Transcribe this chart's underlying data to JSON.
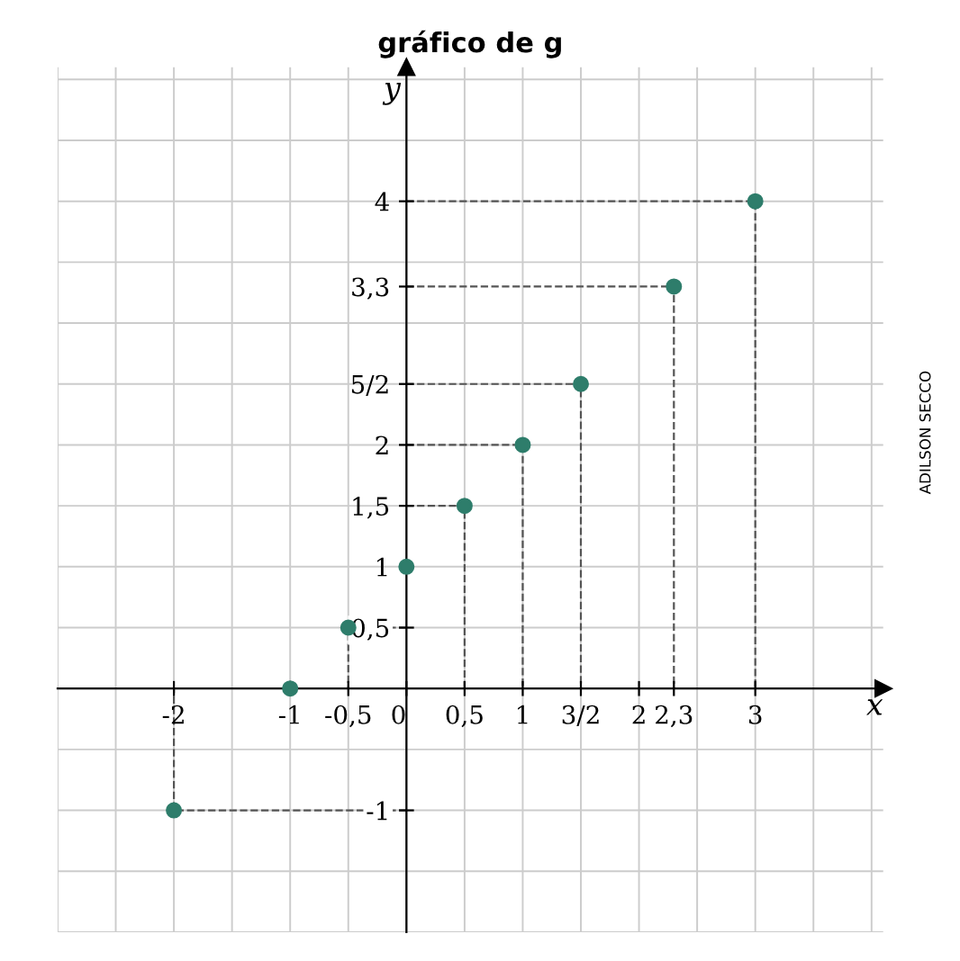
{
  "chart_data": {
    "type": "scatter",
    "title": "gráfico de g",
    "xlabel": "x",
    "ylabel": "y",
    "x": [
      -2,
      -1,
      -0.5,
      0,
      0.5,
      1,
      1.5,
      2.3,
      3
    ],
    "series": [
      {
        "color": "#2e7d6b",
        "marker": "circle",
        "values": [
          -1,
          0,
          0.5,
          1,
          1.5,
          2,
          2.5,
          3.3,
          4
        ]
      },
      {
        "type": "line",
        "color": "#555555",
        "line_style": "dashed",
        "x": [
          0,
          -2,
          -2
        ],
        "values": [
          -1,
          -1,
          0
        ]
      },
      {
        "type": "line",
        "color": "#555555",
        "line_style": "dashed",
        "x": [
          0,
          -0.5,
          -0.5
        ],
        "values": [
          0.5,
          0.5,
          0
        ]
      },
      {
        "type": "line",
        "color": "#555555",
        "line_style": "dashed",
        "x": [
          0,
          0.5,
          0.5
        ],
        "values": [
          1.5,
          1.5,
          0
        ]
      },
      {
        "type": "line",
        "color": "#555555",
        "line_style": "dashed",
        "x": [
          0,
          1,
          1
        ],
        "values": [
          2,
          2,
          0
        ]
      },
      {
        "type": "line",
        "color": "#555555",
        "line_style": "dashed",
        "x": [
          0,
          1.5,
          1.5
        ],
        "values": [
          2.5,
          2.5,
          0
        ]
      },
      {
        "type": "line",
        "color": "#555555",
        "line_style": "dashed",
        "x": [
          0,
          2.3,
          2.3
        ],
        "values": [
          3.3,
          3.3,
          0
        ]
      },
      {
        "type": "line",
        "color": "#555555",
        "line_style": "dashed",
        "x": [
          0,
          3,
          3
        ],
        "values": [
          4,
          4,
          0
        ]
      }
    ],
    "xlim": [
      -3,
      4.1
    ],
    "ylim": [
      -2,
      5.1
    ],
    "xticks": [
      -2,
      -1,
      {
        "value": -0.5,
        "label": "-0,5"
      },
      0,
      {
        "value": 0.5,
        "label": "0,5"
      },
      1,
      {
        "value": 1.5,
        "label": "3/2"
      },
      2,
      {
        "value": 2.3,
        "label": "2,3"
      },
      3
    ],
    "yticks": [
      -1,
      {
        "value": 0.5,
        "label": "0,5"
      },
      1,
      {
        "value": 1.5,
        "label": "1,5"
      },
      2,
      {
        "value": 2.5,
        "label": "5/2"
      },
      {
        "value": 3.3,
        "label": "3,3"
      },
      4
    ],
    "grid": true,
    "annotations": [
      "ADILSON SECCO"
    ]
  }
}
